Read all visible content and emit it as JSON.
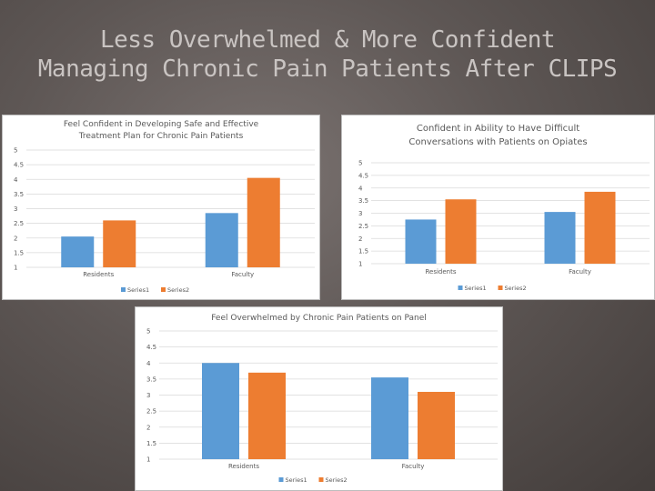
{
  "slide": {
    "title_line1": "Less Overwhelmed & More Confident",
    "title_line2": "Managing Chronic Pain Patients After CLIPS"
  },
  "colors": {
    "series1": "#5b9bd5",
    "series2": "#ed7d31",
    "axis_text": "#595959",
    "grid": "#d9d9d9"
  },
  "chart_data": [
    {
      "type": "bar",
      "title": [
        "Feel Confident in Developing Safe and Effective",
        "Treatment Plan for Chronic Pain Patients"
      ],
      "categories": [
        "Residents",
        "Faculty"
      ],
      "series": [
        {
          "name": "Series1",
          "values": [
            2.05,
            2.85
          ]
        },
        {
          "name": "Series2",
          "values": [
            2.6,
            4.05
          ]
        }
      ],
      "yticks": [
        "1",
        "1.5",
        "2",
        "2.5",
        "3",
        "3.5",
        "4",
        "4.5",
        "5"
      ],
      "ylim": [
        1,
        5
      ],
      "legend": "bottom"
    },
    {
      "type": "bar",
      "title": [
        "Confident in Ability to Have Difficult",
        "Conversations with Patients on Opiates"
      ],
      "categories": [
        "Residents",
        "Faculty"
      ],
      "series": [
        {
          "name": "Series1",
          "values": [
            2.75,
            3.05
          ]
        },
        {
          "name": "Series2",
          "values": [
            3.55,
            3.85
          ]
        }
      ],
      "yticks": [
        "1",
        "1.5",
        "2",
        "2.5",
        "3",
        "3.5",
        "4",
        "4.5",
        "5"
      ],
      "ylim": [
        1,
        5
      ],
      "legend": "bottom"
    },
    {
      "type": "bar",
      "title": [
        "Feel Overwhelmed by Chronic Pain Patients on Panel"
      ],
      "categories": [
        "Residents",
        "Faculty"
      ],
      "series": [
        {
          "name": "Series1",
          "values": [
            4.0,
            3.55
          ]
        },
        {
          "name": "Series2",
          "values": [
            3.7,
            3.1
          ]
        }
      ],
      "yticks": [
        "1",
        "1.5",
        "2",
        "2.5",
        "3",
        "3.5",
        "4",
        "4.5",
        "5"
      ],
      "ylim": [
        1,
        5
      ],
      "legend": "bottom"
    }
  ]
}
